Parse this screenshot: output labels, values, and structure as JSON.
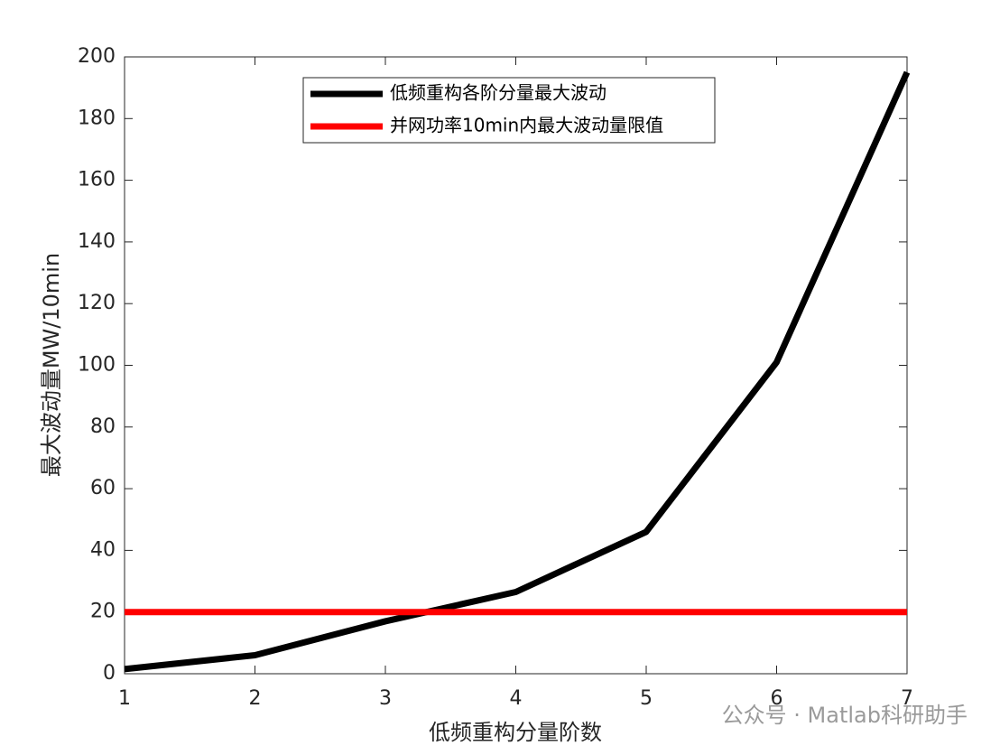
{
  "chart_data": {
    "type": "line",
    "x": [
      1,
      2,
      3,
      4,
      5,
      6,
      7
    ],
    "series": [
      {
        "name": "低频重构各阶分量最大波动",
        "color": "#000000",
        "values": [
          1.5,
          6,
          17,
          26.5,
          46,
          101,
          195
        ]
      },
      {
        "name": "并网功率10min内最大波动量限值",
        "color": "#ff0000",
        "values": [
          20,
          20,
          20,
          20,
          20,
          20,
          20
        ]
      }
    ],
    "x_label": "低频重构分量阶数",
    "y_label": "最大波动量MW/10min",
    "xlim": [
      1,
      7
    ],
    "xticks": [
      1,
      2,
      3,
      4,
      5,
      6,
      7
    ],
    "ylim": [
      0,
      200
    ],
    "yticks": [
      0,
      20,
      40,
      60,
      80,
      100,
      120,
      140,
      160,
      180,
      200
    ],
    "legend_position": "top",
    "watermark": "公众号 · Matlab科研助手"
  }
}
